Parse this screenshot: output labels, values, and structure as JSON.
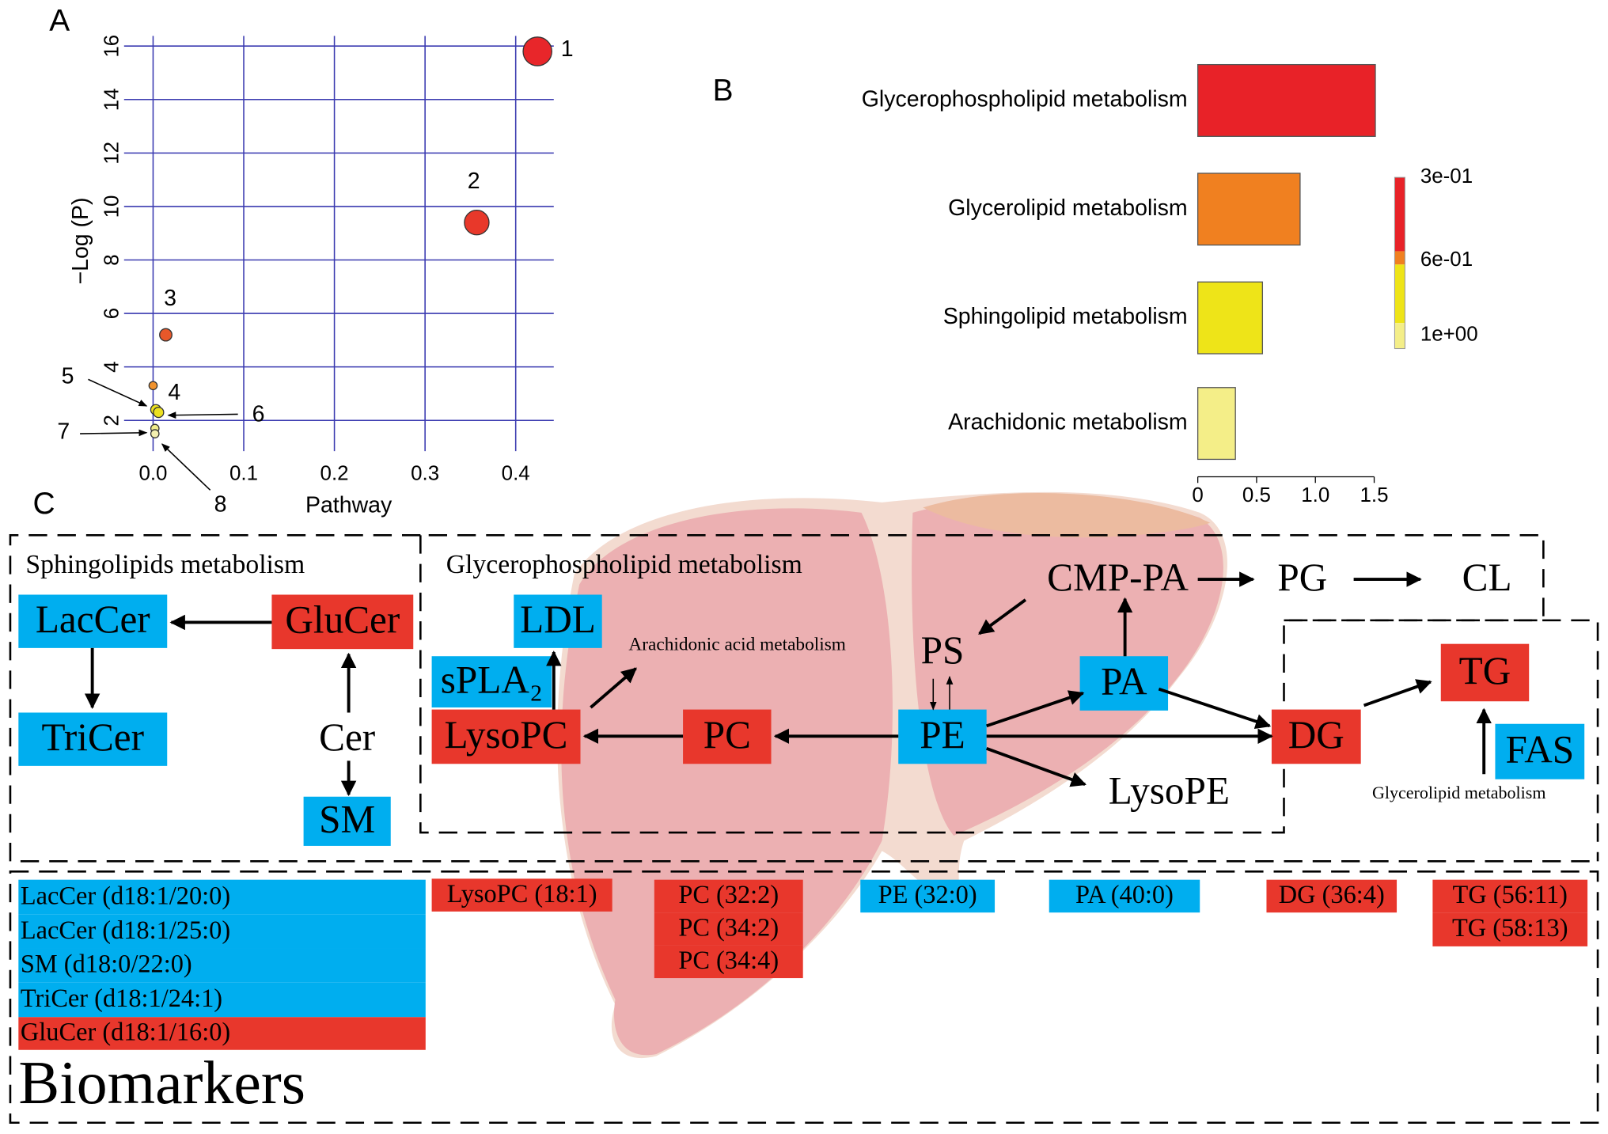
{
  "panel_labels": [
    "A",
    "B",
    "C"
  ],
  "chart_data": [
    {
      "type": "scatter",
      "x_label": "Pathway",
      "y_label": "−Log (P)",
      "x": [
        0.424,
        0.357,
        0.014,
        0.0,
        0.003,
        0.006,
        0.002,
        0.002
      ],
      "y": [
        15.8,
        9.4,
        5.2,
        3.3,
        2.4,
        2.3,
        1.7,
        1.5
      ],
      "sizes": [
        14,
        12,
        6,
        4,
        5,
        5,
        4,
        4
      ],
      "colors": [
        "#e8262a",
        "#e8382a",
        "#e8582a",
        "#f0922e",
        "#ece020",
        "#ece020",
        "#f0ec8a",
        "#f4f0b0"
      ],
      "labels": [
        "1",
        "2",
        "3",
        "4",
        "5",
        "6",
        "7",
        "8"
      ],
      "xlim": [
        -0.032,
        0.442
      ],
      "ylim": [
        0.85,
        16.38
      ],
      "xticks": [
        {
          "value": 0,
          "label": "0.0"
        },
        0.1,
        0.2,
        0.3,
        0.4
      ],
      "yticks": [
        2,
        4,
        6,
        8,
        10,
        12,
        14,
        16
      ],
      "grid": true,
      "grid_color": "#3a3ab0"
    },
    {
      "type": "hbar",
      "categories": [
        "Glycerophospholipid metabolism",
        "Glycerolipid metabolism",
        "Sphingolipid metabolism",
        "Arachidonic metabolism"
      ],
      "values": [
        1.51,
        0.87,
        0.55,
        0.32
      ],
      "colors": [
        "#e82228",
        "#f08020",
        "#eee418",
        "#f4ee88"
      ],
      "xlim": [
        0,
        1.5
      ],
      "xticks": [
        0,
        0.5,
        {
          "value": 1,
          "label": "1.0"
        },
        1.5
      ],
      "colorbar": {
        "colors": [
          "#e82228",
          "#f08020",
          "#eee418",
          "#f4ee88"
        ],
        "ticks": [
          {
            "value": 0.3,
            "label": "3e-01"
          },
          {
            "value": 0.6,
            "label": "6e-01"
          },
          {
            "value": 1,
            "label": "1e+00"
          }
        ]
      }
    }
  ],
  "diagram": {
    "sections": [
      "Sphingolipids metabolism",
      "Glycerophospholipid metabolism",
      "Arachidonic acid metabolism",
      "Glycerolipid metabolism"
    ],
    "nodes": [
      {
        "label": "LacCer",
        "color": "#00aeef"
      },
      {
        "label": "GluCer",
        "color": "#e8372c"
      },
      {
        "label": "TriCer",
        "color": "#00aeef"
      },
      {
        "label": "Cer",
        "color": null
      },
      {
        "label": "SM",
        "color": "#00aeef"
      },
      {
        "label": "LDL",
        "color": "#00aeef"
      },
      {
        "label": "sPLA₂",
        "color": "#00aeef"
      },
      {
        "label": "LysoPC",
        "color": "#e8372c"
      },
      {
        "label": "PC",
        "color": "#e8372c"
      },
      {
        "label": "PE",
        "color": "#00aeef"
      },
      {
        "label": "PS",
        "color": null
      },
      {
        "label": "PA",
        "color": "#00aeef"
      },
      {
        "label": "CMP-PA",
        "color": null
      },
      {
        "label": "PG",
        "color": null
      },
      {
        "label": "CL",
        "color": null
      },
      {
        "label": "LysoPE",
        "color": null
      },
      {
        "label": "DG",
        "color": "#e8372c"
      },
      {
        "label": "TG",
        "color": "#e8372c"
      },
      {
        "label": "FAS",
        "color": "#00aeef"
      }
    ],
    "biomarkers_title": "Biomarkers",
    "biomarkers": [
      {
        "label": "LacCer (d18:1/20:0)",
        "color": "#00aeef"
      },
      {
        "label": "LacCer (d18:1/25:0)",
        "color": "#00aeef"
      },
      {
        "label": "SM (d18:0/22:0)",
        "color": "#00aeef"
      },
      {
        "label": "TriCer (d18:1/24:1)",
        "color": "#00aeef"
      },
      {
        "label": "GluCer (d18:1/16:0)",
        "color": "#e8372c"
      },
      {
        "label": "LysoPC (18:1)",
        "color": "#e8372c"
      },
      {
        "label": "PC (32:2)",
        "color": "#e8372c"
      },
      {
        "label": "PC (34:2)",
        "color": "#e8372c"
      },
      {
        "label": "PC (34:4)",
        "color": "#e8372c"
      },
      {
        "label": "PE (32:0)",
        "color": "#00aeef"
      },
      {
        "label": "PA (40:0)",
        "color": "#00aeef"
      },
      {
        "label": "DG (36:4)",
        "color": "#e8372c"
      },
      {
        "label": "TG (56:11)",
        "color": "#e8372c"
      },
      {
        "label": "TG (58:13)",
        "color": "#e8372c"
      }
    ]
  }
}
